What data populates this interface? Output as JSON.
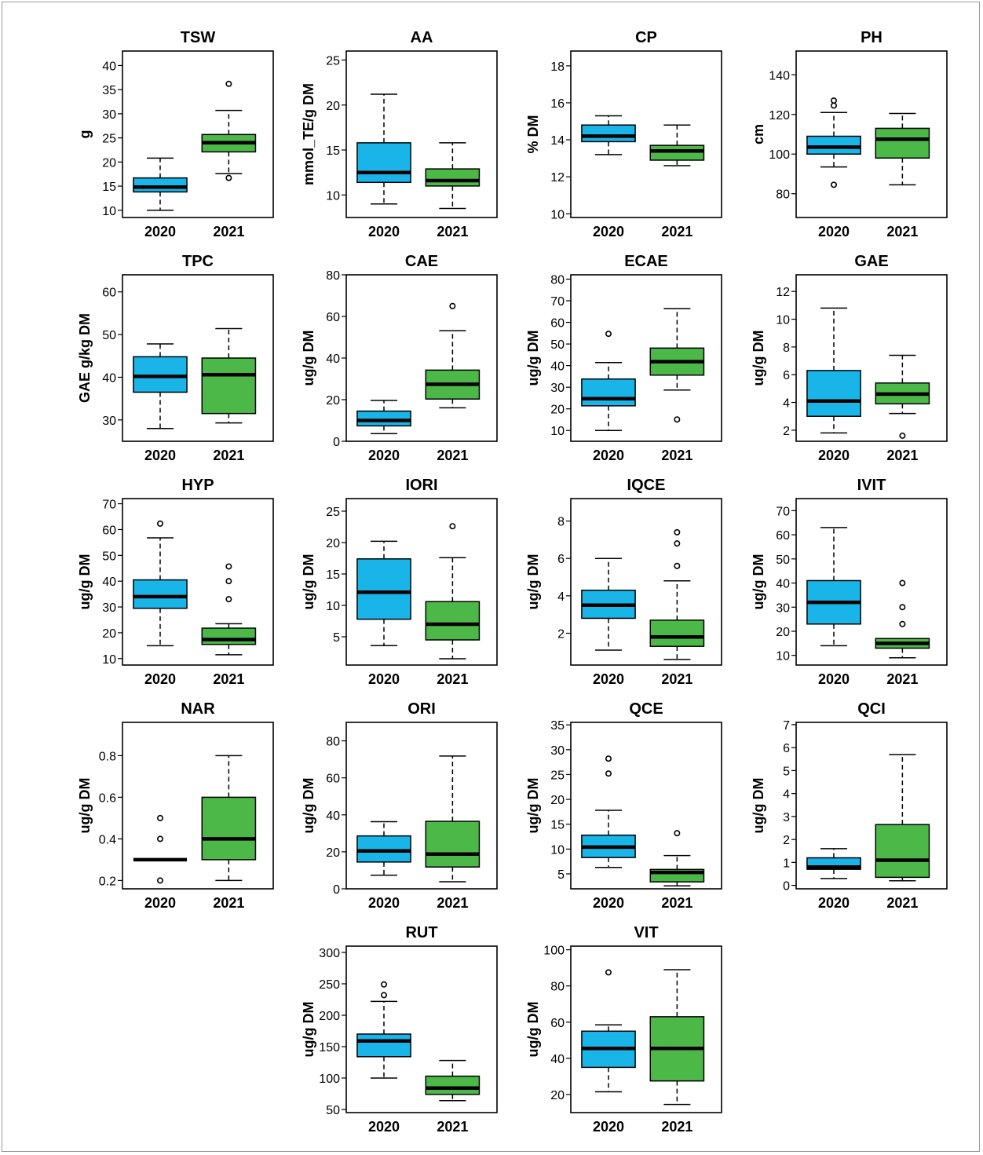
{
  "colors": {
    "year_2020": "#19b4e8",
    "year_2021": "#4cb848",
    "median": "#000000",
    "frame": "#000000"
  },
  "chart_data": [
    {
      "type": "boxplot",
      "title": "TSW",
      "ylabel": "g",
      "categories": [
        "2020",
        "2021"
      ],
      "yticks": [
        10,
        15,
        20,
        25,
        30,
        35,
        40
      ],
      "ylim": [
        8.5,
        43
      ],
      "boxes": [
        {
          "category": "2020",
          "q1": 13.8,
          "median": 14.8,
          "q3": 16.7,
          "whisker_low": 10,
          "whisker_high": 20.8,
          "outliers": []
        },
        {
          "category": "2021",
          "q1": 22.1,
          "median": 24,
          "q3": 25.7,
          "whisker_low": 17.6,
          "whisker_high": 30.7,
          "outliers": [
            16.7,
            36.2
          ]
        }
      ]
    },
    {
      "type": "boxplot",
      "title": "AA",
      "ylabel": "mmol_TE/g DM",
      "categories": [
        "2020",
        "2021"
      ],
      "yticks": [
        10,
        15,
        20,
        25
      ],
      "ylim": [
        7.5,
        26
      ],
      "boxes": [
        {
          "category": "2020",
          "q1": 11.4,
          "median": 12.5,
          "q3": 15.8,
          "whisker_low": 9,
          "whisker_high": 21.2,
          "outliers": []
        },
        {
          "category": "2021",
          "q1": 11,
          "median": 11.6,
          "q3": 12.9,
          "whisker_low": 8.5,
          "whisker_high": 15.8,
          "outliers": []
        }
      ]
    },
    {
      "type": "boxplot",
      "title": "CP",
      "ylabel": "% DM",
      "categories": [
        "2020",
        "2021"
      ],
      "yticks": [
        10,
        12,
        14,
        16,
        18
      ],
      "ylim": [
        9.8,
        18.8
      ],
      "boxes": [
        {
          "category": "2020",
          "q1": 13.9,
          "median": 14.2,
          "q3": 14.8,
          "whisker_low": 13.2,
          "whisker_high": 15.3,
          "outliers": []
        },
        {
          "category": "2021",
          "q1": 12.9,
          "median": 13.4,
          "q3": 13.7,
          "whisker_low": 12.6,
          "whisker_high": 14.8,
          "outliers": []
        }
      ]
    },
    {
      "type": "boxplot",
      "title": "PH",
      "ylabel": "cm",
      "categories": [
        "2020",
        "2021"
      ],
      "yticks": [
        80,
        100,
        120,
        140
      ],
      "ylim": [
        68,
        152
      ],
      "boxes": [
        {
          "category": "2020",
          "q1": 100,
          "median": 103.5,
          "q3": 109,
          "whisker_low": 93.5,
          "whisker_high": 121,
          "outliers": [
            84.5,
            124.5,
            127
          ]
        },
        {
          "category": "2021",
          "q1": 98,
          "median": 107.5,
          "q3": 113,
          "whisker_low": 84.5,
          "whisker_high": 120.5,
          "outliers": []
        }
      ]
    },
    {
      "type": "boxplot",
      "title": "TPC",
      "ylabel": "GAE g/kg DM",
      "categories": [
        "2020",
        "2021"
      ],
      "yticks": [
        30,
        40,
        50,
        60
      ],
      "ylim": [
        25,
        64
      ],
      "boxes": [
        {
          "category": "2020",
          "q1": 36.5,
          "median": 40.2,
          "q3": 44.8,
          "whisker_low": 28,
          "whisker_high": 47.8,
          "outliers": []
        },
        {
          "category": "2021",
          "q1": 31.5,
          "median": 40.6,
          "q3": 44.5,
          "whisker_low": 29.3,
          "whisker_high": 51.4,
          "outliers": []
        }
      ]
    },
    {
      "type": "boxplot",
      "title": "CAE",
      "ylabel": "ug/g DM",
      "categories": [
        "2020",
        "2021"
      ],
      "yticks": [
        0,
        20,
        40,
        60,
        80
      ],
      "ylim": [
        0,
        80
      ],
      "boxes": [
        {
          "category": "2020",
          "q1": 7.4,
          "median": 10,
          "q3": 14.5,
          "whisker_low": 3.7,
          "whisker_high": 19.6,
          "outliers": []
        },
        {
          "category": "2021",
          "q1": 20.3,
          "median": 27.4,
          "q3": 34.2,
          "whisker_low": 16.1,
          "whisker_high": 53.1,
          "outliers": [
            65
          ]
        }
      ]
    },
    {
      "type": "boxplot",
      "title": "ECAE",
      "ylabel": "ug/g DM",
      "categories": [
        "2020",
        "2021"
      ],
      "yticks": [
        10,
        20,
        30,
        40,
        50,
        60,
        70,
        80
      ],
      "ylim": [
        5,
        82
      ],
      "boxes": [
        {
          "category": "2020",
          "q1": 21.4,
          "median": 24.7,
          "q3": 33.8,
          "whisker_low": 10,
          "whisker_high": 41.4,
          "outliers": [
            54.7
          ]
        },
        {
          "category": "2021",
          "q1": 35.6,
          "median": 41.8,
          "q3": 48.1,
          "whisker_low": 28.7,
          "whisker_high": 66.4,
          "outliers": [
            15.1
          ]
        }
      ]
    },
    {
      "type": "boxplot",
      "title": "GAE",
      "ylabel": "ug/g DM",
      "categories": [
        "2020",
        "2021"
      ],
      "yticks": [
        2,
        4,
        6,
        8,
        10,
        12
      ],
      "ylim": [
        1.2,
        13.2
      ],
      "boxes": [
        {
          "category": "2020",
          "q1": 3,
          "median": 4.1,
          "q3": 6.3,
          "whisker_low": 1.8,
          "whisker_high": 10.8,
          "outliers": []
        },
        {
          "category": "2021",
          "q1": 3.9,
          "median": 4.6,
          "q3": 5.4,
          "whisker_low": 3.2,
          "whisker_high": 7.4,
          "outliers": [
            1.6
          ]
        }
      ]
    },
    {
      "type": "boxplot",
      "title": "HYP",
      "ylabel": "ug/g DM",
      "categories": [
        "2020",
        "2021"
      ],
      "yticks": [
        10,
        20,
        30,
        40,
        50,
        60,
        70
      ],
      "ylim": [
        7.5,
        72
      ],
      "boxes": [
        {
          "category": "2020",
          "q1": 29.5,
          "median": 34,
          "q3": 40.5,
          "whisker_low": 15,
          "whisker_high": 56.8,
          "outliers": [
            62.3
          ]
        },
        {
          "category": "2021",
          "q1": 15.5,
          "median": 17.4,
          "q3": 21.8,
          "whisker_low": 11.5,
          "whisker_high": 23.5,
          "outliers": [
            33,
            40,
            45.7
          ]
        }
      ]
    },
    {
      "type": "boxplot",
      "title": "IORI",
      "ylabel": "ug/g DM",
      "categories": [
        "2020",
        "2021"
      ],
      "yticks": [
        5,
        10,
        15,
        20,
        25
      ],
      "ylim": [
        0.5,
        27
      ],
      "boxes": [
        {
          "category": "2020",
          "q1": 7.8,
          "median": 12.1,
          "q3": 17.4,
          "whisker_low": 3.6,
          "whisker_high": 20.2,
          "outliers": []
        },
        {
          "category": "2021",
          "q1": 4.5,
          "median": 7,
          "q3": 10.6,
          "whisker_low": 1.5,
          "whisker_high": 17.6,
          "outliers": [
            22.6
          ]
        }
      ]
    },
    {
      "type": "boxplot",
      "title": "IQCE",
      "ylabel": "ug/g DM",
      "categories": [
        "2020",
        "2021"
      ],
      "yticks": [
        2,
        4,
        6,
        8
      ],
      "ylim": [
        0.3,
        9.2
      ],
      "boxes": [
        {
          "category": "2020",
          "q1": 2.8,
          "median": 3.5,
          "q3": 4.3,
          "whisker_low": 1.1,
          "whisker_high": 6,
          "outliers": []
        },
        {
          "category": "2021",
          "q1": 1.3,
          "median": 1.8,
          "q3": 2.7,
          "whisker_low": 0.6,
          "whisker_high": 4.8,
          "outliers": [
            5.6,
            6.8,
            7.4
          ]
        }
      ]
    },
    {
      "type": "boxplot",
      "title": "IVIT",
      "ylabel": "ug/g DM",
      "categories": [
        "2020",
        "2021"
      ],
      "yticks": [
        10,
        20,
        30,
        40,
        50,
        60,
        70
      ],
      "ylim": [
        6,
        75
      ],
      "boxes": [
        {
          "category": "2020",
          "q1": 23,
          "median": 32,
          "q3": 41,
          "whisker_low": 14,
          "whisker_high": 63,
          "outliers": []
        },
        {
          "category": "2021",
          "q1": 13,
          "median": 15,
          "q3": 17,
          "whisker_low": 9,
          "whisker_high": 17,
          "outliers": [
            23,
            30,
            40
          ]
        }
      ]
    },
    {
      "type": "boxplot",
      "title": "NAR",
      "ylabel": "ug/g DM",
      "categories": [
        "2020",
        "2021"
      ],
      "yticks": [
        0.2,
        0.4,
        0.6,
        0.8
      ],
      "ylim": [
        0.16,
        0.96
      ],
      "boxes": [
        {
          "category": "2020",
          "q1": 0.3,
          "median": 0.3,
          "q3": 0.3,
          "whisker_low": 0.3,
          "whisker_high": 0.3,
          "outliers": [
            0.2,
            0.4,
            0.5
          ]
        },
        {
          "category": "2021",
          "q1": 0.3,
          "median": 0.4,
          "q3": 0.6,
          "whisker_low": 0.2,
          "whisker_high": 0.8,
          "outliers": []
        }
      ]
    },
    {
      "type": "boxplot",
      "title": "ORI",
      "ylabel": "ug/g DM",
      "categories": [
        "2020",
        "2021"
      ],
      "yticks": [
        0,
        20,
        40,
        60,
        80
      ],
      "ylim": [
        0,
        90
      ],
      "boxes": [
        {
          "category": "2020",
          "q1": 14.5,
          "median": 20.5,
          "q3": 28.6,
          "whisker_low": 7.4,
          "whisker_high": 36.3,
          "outliers": []
        },
        {
          "category": "2021",
          "q1": 11.8,
          "median": 18.8,
          "q3": 36.5,
          "whisker_low": 3.8,
          "whisker_high": 71.8,
          "outliers": []
        }
      ]
    },
    {
      "type": "boxplot",
      "title": "QCE",
      "ylabel": "ug/g DM",
      "categories": [
        "2020",
        "2021"
      ],
      "yticks": [
        5,
        10,
        15,
        20,
        25,
        30,
        35
      ],
      "ylim": [
        2,
        35.5
      ],
      "boxes": [
        {
          "category": "2020",
          "q1": 8.3,
          "median": 10.4,
          "q3": 12.8,
          "whisker_low": 6.3,
          "whisker_high": 17.8,
          "outliers": [
            25.2,
            28.2
          ]
        },
        {
          "category": "2021",
          "q1": 3.4,
          "median": 5.3,
          "q3": 5.9,
          "whisker_low": 2.6,
          "whisker_high": 8.7,
          "outliers": [
            13.2
          ]
        }
      ]
    },
    {
      "type": "boxplot",
      "title": "QCI",
      "ylabel": "ug/g DM",
      "categories": [
        "2020",
        "2021"
      ],
      "yticks": [
        0,
        1,
        2,
        3,
        4,
        5,
        6,
        7
      ],
      "ylim": [
        -0.15,
        7.1
      ],
      "boxes": [
        {
          "category": "2020",
          "q1": 0.7,
          "median": 0.8,
          "q3": 1.2,
          "whisker_low": 0.3,
          "whisker_high": 1.6,
          "outliers": []
        },
        {
          "category": "2021",
          "q1": 0.35,
          "median": 1.1,
          "q3": 2.65,
          "whisker_low": 0.2,
          "whisker_high": 5.7,
          "outliers": []
        }
      ]
    },
    {
      "type": "boxplot",
      "title": "RUT",
      "ylabel": "ug/g DM",
      "categories": [
        "2020",
        "2021"
      ],
      "yticks": [
        50,
        100,
        150,
        200,
        250,
        300
      ],
      "ylim": [
        45,
        310
      ],
      "boxes": [
        {
          "category": "2020",
          "q1": 134,
          "median": 159,
          "q3": 170,
          "whisker_low": 100,
          "whisker_high": 222,
          "outliers": [
            232,
            249
          ]
        },
        {
          "category": "2021",
          "q1": 74,
          "median": 84,
          "q3": 103,
          "whisker_low": 64,
          "whisker_high": 128,
          "outliers": []
        }
      ]
    },
    {
      "type": "boxplot",
      "title": "VIT",
      "ylabel": "ug/g DM",
      "categories": [
        "2020",
        "2021"
      ],
      "yticks": [
        20,
        40,
        60,
        80,
        100
      ],
      "ylim": [
        10,
        102
      ],
      "boxes": [
        {
          "category": "2020",
          "q1": 35,
          "median": 45.5,
          "q3": 55,
          "whisker_low": 21.5,
          "whisker_high": 58.5,
          "outliers": [
            87.5
          ]
        },
        {
          "category": "2021",
          "q1": 27.5,
          "median": 45.5,
          "q3": 63,
          "whisker_low": 14.5,
          "whisker_high": 89
        }
      ]
    }
  ]
}
